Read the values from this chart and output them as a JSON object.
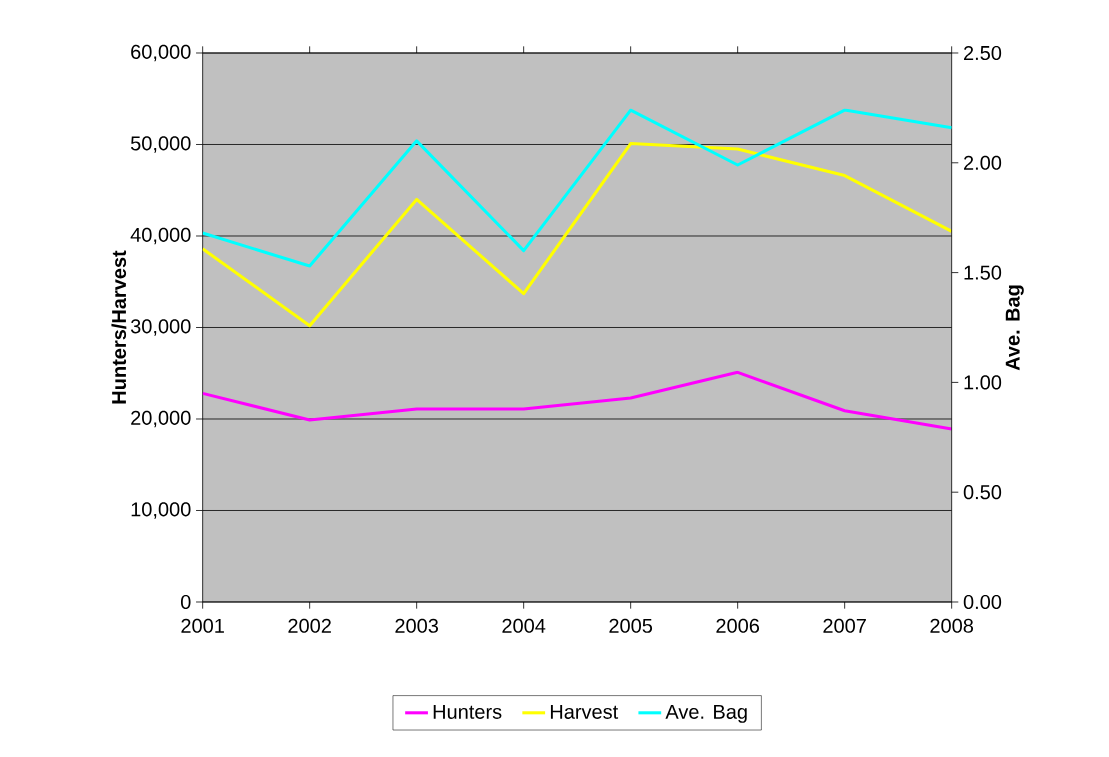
{
  "chart_data": {
    "type": "line",
    "ylabel": "Hunters/Harvest",
    "y2label": "Ave. Bag",
    "x": [
      2001,
      2002,
      2003,
      2004,
      2005,
      2006,
      2007,
      2008
    ],
    "xlim": [
      2001,
      2008
    ],
    "xticks": [
      2001,
      2002,
      2003,
      2004,
      2005,
      2006,
      2007,
      2008
    ],
    "ylim": [
      0,
      60000
    ],
    "yticks": [
      {
        "value": 0,
        "label": "0"
      },
      {
        "value": 10000,
        "label": "10,000"
      },
      {
        "value": 20000,
        "label": "20,000"
      },
      {
        "value": 30000,
        "label": "30,000"
      },
      {
        "value": 40000,
        "label": "40,000"
      },
      {
        "value": 50000,
        "label": "50,000"
      },
      {
        "value": 60000,
        "label": "60,000"
      }
    ],
    "y2lim": [
      0,
      2.5
    ],
    "y2ticks": [
      {
        "value": 0,
        "label": "0.00"
      },
      {
        "value": 0.5,
        "label": "0.50"
      },
      {
        "value": 1,
        "label": "1.00"
      },
      {
        "value": 1.5,
        "label": "1.50"
      },
      {
        "value": 2,
        "label": "2.00"
      },
      {
        "value": 2.5,
        "label": "2.50"
      }
    ],
    "series": [
      {
        "name": "Hunters",
        "color": "#ff00ff",
        "values": [
          22800,
          19900,
          21100,
          21100,
          22300,
          25100,
          20900,
          18900
        ]
      },
      {
        "name": "Harvest",
        "color": "#ffff00",
        "values": [
          38600,
          30200,
          44000,
          33700,
          50100,
          49500,
          46600,
          40500
        ]
      },
      {
        "name": "Ave. Bag",
        "color": "#00ffff",
        "axis": "y2",
        "values": [
          1.68,
          1.53,
          2.1,
          1.6,
          2.24,
          1.99,
          2.24,
          2.16
        ]
      }
    ],
    "grid": "y",
    "legend": "bottom",
    "marker": "none",
    "line_style": "solid"
  }
}
